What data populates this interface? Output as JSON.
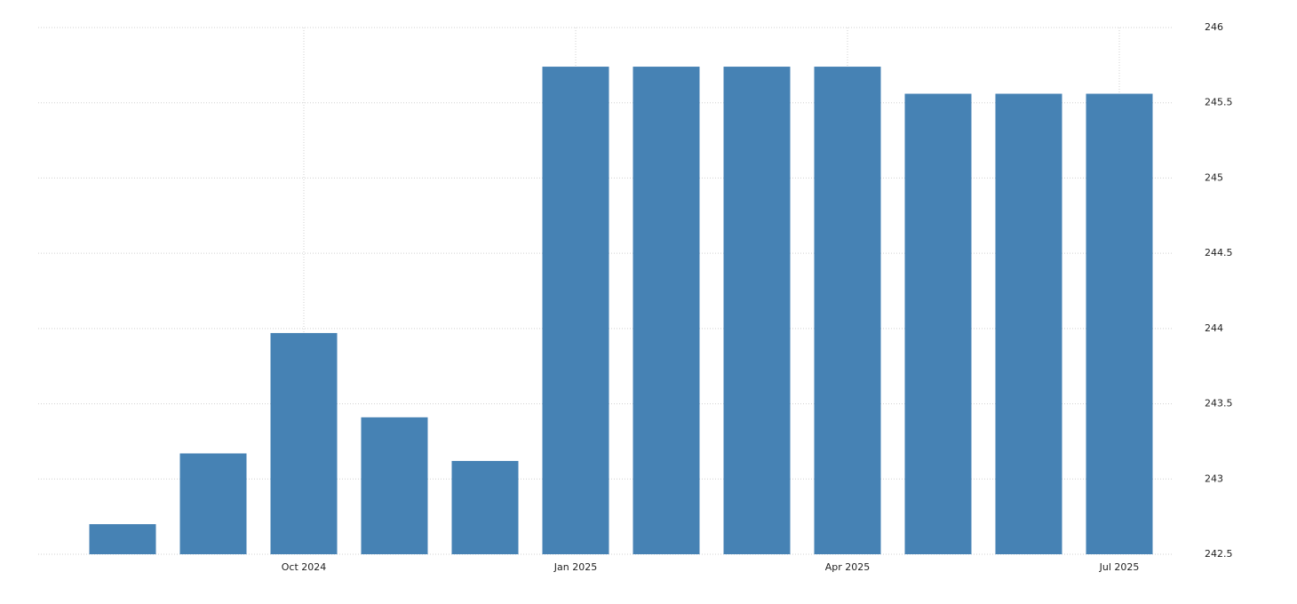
{
  "chart_data": {
    "type": "bar",
    "categories": [
      null,
      null,
      "Oct 2024",
      null,
      null,
      "Jan 2025",
      null,
      null,
      "Apr 2025",
      null,
      null,
      "Jul 2025"
    ],
    "values": [
      242.7,
      243.17,
      243.97,
      243.41,
      243.12,
      245.74,
      245.74,
      245.74,
      245.74,
      245.56,
      245.56,
      245.56
    ],
    "color": "#4682b4",
    "ylim": [
      242.5,
      246
    ],
    "yticks": [
      242.5,
      243,
      243.5,
      244,
      244.5,
      245,
      245.5,
      246
    ],
    "grid": true
  }
}
